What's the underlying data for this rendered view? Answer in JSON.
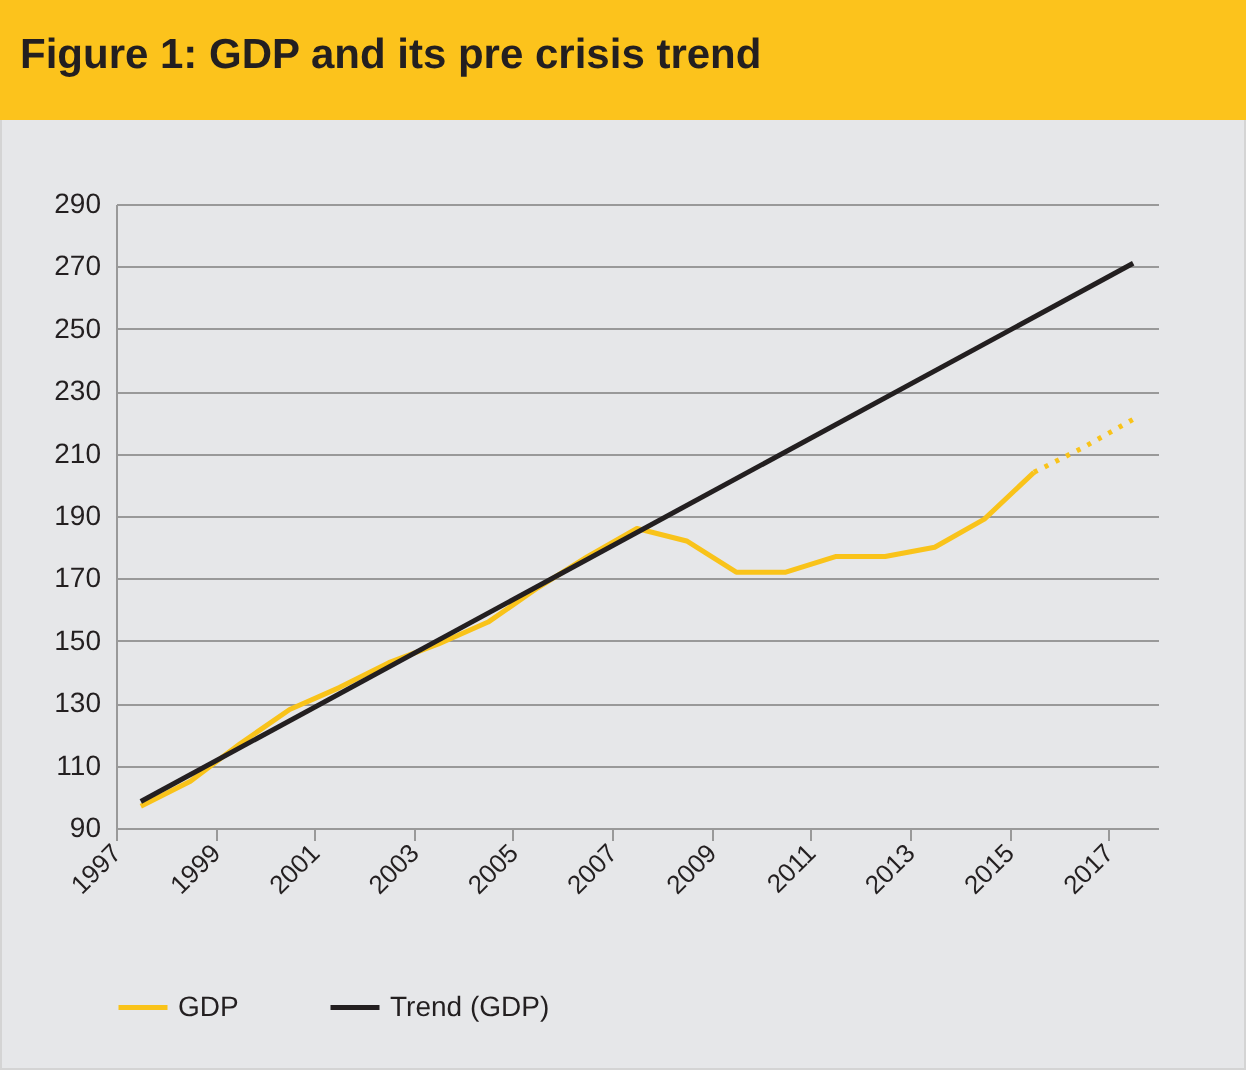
{
  "chart_data": {
    "type": "line",
    "title": "Figure 1: GDP and its pre crisis trend",
    "xlim": [
      1997,
      2018
    ],
    "xticks": [
      1997,
      1999,
      2001,
      2003,
      2005,
      2007,
      2009,
      2011,
      2013,
      2015,
      2017
    ],
    "ylim": [
      90,
      290
    ],
    "yticks": [
      90,
      110,
      130,
      150,
      170,
      190,
      210,
      230,
      250,
      270,
      290
    ],
    "grid": "y",
    "legend": "bottom",
    "marker": "none",
    "series": [
      {
        "name": "GDP",
        "color": "#f9c31a",
        "line_style": "solid",
        "x": [
          1997.5,
          1998.5,
          1999.5,
          2000.5,
          2001.5,
          2002.5,
          2003.5,
          2004.5,
          2005.5,
          2006.5,
          2007.5,
          2008.5,
          2009.5,
          2010.5,
          2011.5,
          2012.5,
          2013.5,
          2014.5,
          2015.5
        ],
        "values": [
          97,
          105,
          117,
          128,
          135,
          143,
          149,
          156,
          167,
          177,
          186,
          182,
          172,
          172,
          177,
          177,
          180,
          189,
          204
        ]
      },
      {
        "color": "#f9c31a",
        "line_style": "dotted",
        "x": [
          2015.5,
          2016.5,
          2017.5
        ],
        "values": [
          204,
          212,
          221
        ]
      },
      {
        "name": "Trend (GDP)",
        "color": "#231f20",
        "line_style": "solid",
        "x": [
          1997.5,
          2017.5
        ],
        "values": [
          98.5,
          271
        ]
      }
    ]
  }
}
